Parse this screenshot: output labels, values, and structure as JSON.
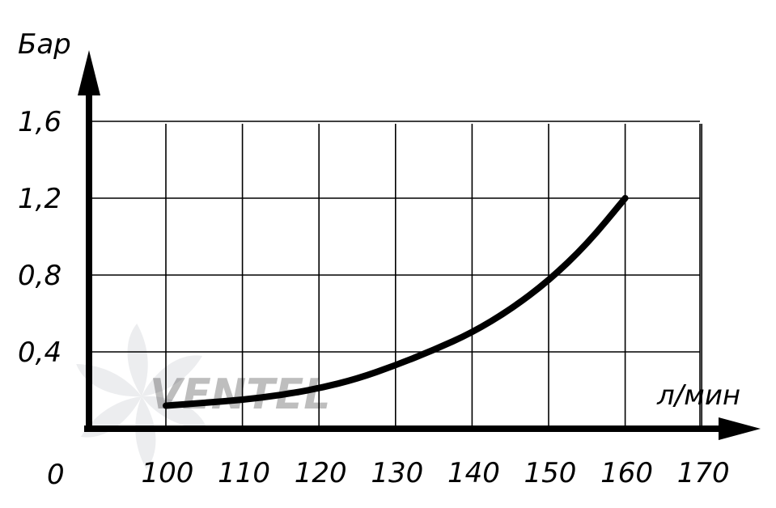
{
  "chart_data": {
    "type": "line",
    "title": "",
    "xlabel": "л/мин",
    "ylabel": "Бар",
    "origin_label": "0",
    "x_ticks": [
      100,
      110,
      120,
      130,
      140,
      150,
      160,
      170
    ],
    "x_tick_labels": [
      "100",
      "110",
      "120",
      "130",
      "140",
      "150",
      "160",
      "170"
    ],
    "y_ticks": [
      0.4,
      0.8,
      1.2,
      1.6
    ],
    "y_tick_labels": [
      "0,4",
      "0,8",
      "1,2",
      "1,6"
    ],
    "xlim": [
      100,
      170
    ],
    "ylim": [
      0,
      1.6
    ],
    "grid": true,
    "series": [
      {
        "name": "",
        "color": "#000000",
        "points": [
          {
            "x": 100,
            "y": 0.12
          },
          {
            "x": 105,
            "y": 0.135
          },
          {
            "x": 110,
            "y": 0.15
          },
          {
            "x": 115,
            "y": 0.175
          },
          {
            "x": 120,
            "y": 0.21
          },
          {
            "x": 125,
            "y": 0.26
          },
          {
            "x": 130,
            "y": 0.33
          },
          {
            "x": 135,
            "y": 0.41
          },
          {
            "x": 140,
            "y": 0.5
          },
          {
            "x": 145,
            "y": 0.62
          },
          {
            "x": 150,
            "y": 0.77
          },
          {
            "x": 155,
            "y": 0.96
          },
          {
            "x": 160,
            "y": 1.2
          }
        ]
      }
    ]
  },
  "watermark": {
    "logo_text": "VENTEL",
    "icon": "fan-logo-icon"
  },
  "colors": {
    "axis": "#000000",
    "grid": "#000000",
    "background": "#ffffff",
    "watermark_grey": "#9aa0a8",
    "watermark_blue": "#5aa0e0"
  }
}
